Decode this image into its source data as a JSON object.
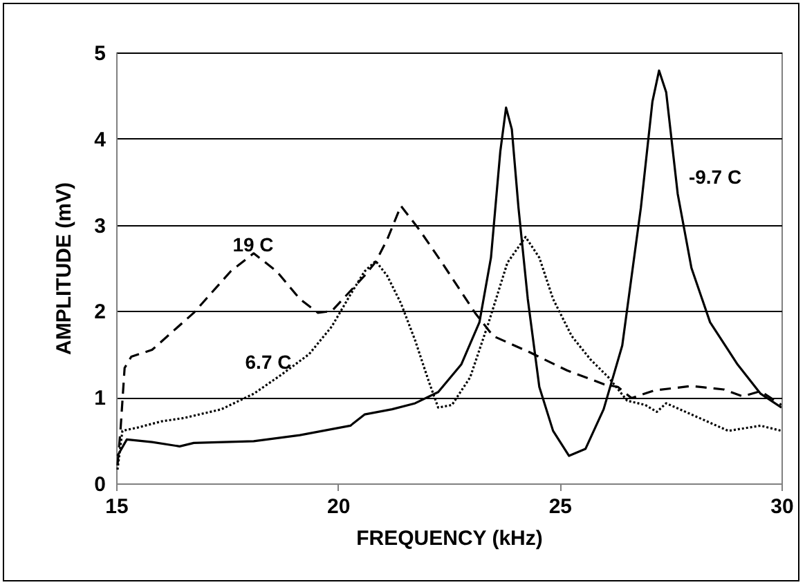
{
  "chart_data": {
    "type": "line",
    "xlabel": "FREQUENCY  (kHz)",
    "ylabel": "AMPLITUDE  (mV)",
    "xlim": [
      15,
      30
    ],
    "xticks": [
      15,
      20,
      25,
      30
    ],
    "ylim": [
      0,
      5
    ],
    "yticks": [
      0,
      1,
      2,
      3,
      4,
      5
    ],
    "grid": "y",
    "marker": "none",
    "series": [
      {
        "color": "#000000",
        "line_style": "dashed",
        "x": [
          15.03,
          15.1,
          15.19,
          15.34,
          15.81,
          16.75,
          17.58,
          18.1,
          18.62,
          19.14,
          19.55,
          19.86,
          20.6,
          20.85,
          21.11,
          21.42,
          21.84,
          22.36,
          23.09,
          23.5,
          24.33,
          25.17,
          26.0,
          26.31,
          26.62,
          27.14,
          27.97,
          28.7,
          29.12,
          29.53,
          30.0
        ],
        "values": [
          0.21,
          0.64,
          1.34,
          1.47,
          1.55,
          1.98,
          2.46,
          2.67,
          2.46,
          2.14,
          1.98,
          2.0,
          2.41,
          2.57,
          2.83,
          3.22,
          2.94,
          2.55,
          1.98,
          1.71,
          1.52,
          1.31,
          1.15,
          1.12,
          0.99,
          1.08,
          1.13,
          1.09,
          1.01,
          1.07,
          0.91
        ]
      },
      {
        "color": "#000000",
        "line_style": "dotted",
        "x": [
          15.03,
          15.14,
          15.5,
          16.02,
          16.54,
          17.37,
          18.1,
          18.72,
          19.35,
          19.86,
          20.28,
          20.6,
          20.85,
          21.11,
          21.42,
          21.74,
          22.05,
          22.26,
          22.57,
          22.98,
          23.4,
          23.82,
          24.23,
          24.54,
          24.85,
          25.27,
          25.69,
          26.1,
          26.52,
          26.93,
          27.19,
          27.4,
          27.97,
          28.8,
          29.53,
          30.0
        ],
        "values": [
          0.16,
          0.61,
          0.65,
          0.72,
          0.76,
          0.86,
          1.04,
          1.26,
          1.5,
          1.82,
          2.19,
          2.46,
          2.58,
          2.41,
          2.09,
          1.66,
          1.18,
          0.88,
          0.91,
          1.23,
          1.87,
          2.56,
          2.86,
          2.62,
          2.14,
          1.71,
          1.44,
          1.23,
          0.96,
          0.91,
          0.83,
          0.93,
          0.8,
          0.61,
          0.67,
          0.61
        ]
      },
      {
        "color": "#000000",
        "line_style": "solid",
        "x": [
          15.03,
          15.24,
          15.81,
          16.43,
          16.75,
          18.1,
          19.14,
          20.28,
          20.6,
          21.22,
          21.74,
          22.26,
          22.78,
          23.19,
          23.45,
          23.66,
          23.79,
          23.92,
          24.07,
          24.28,
          24.54,
          24.85,
          25.21,
          25.58,
          25.99,
          26.41,
          26.83,
          27.09,
          27.24,
          27.4,
          27.66,
          27.97,
          28.39,
          29.01,
          29.53,
          30.0
        ],
        "values": [
          0.32,
          0.51,
          0.48,
          0.43,
          0.47,
          0.49,
          0.56,
          0.67,
          0.8,
          0.86,
          0.93,
          1.06,
          1.38,
          1.87,
          2.62,
          3.85,
          4.36,
          4.11,
          3.2,
          2.14,
          1.12,
          0.61,
          0.32,
          0.4,
          0.86,
          1.6,
          3.2,
          4.43,
          4.79,
          4.54,
          3.36,
          2.5,
          1.87,
          1.38,
          1.04,
          0.88
        ]
      }
    ],
    "annotations": [
      "19 C",
      "6.7 C",
      "-9.7 C"
    ]
  }
}
